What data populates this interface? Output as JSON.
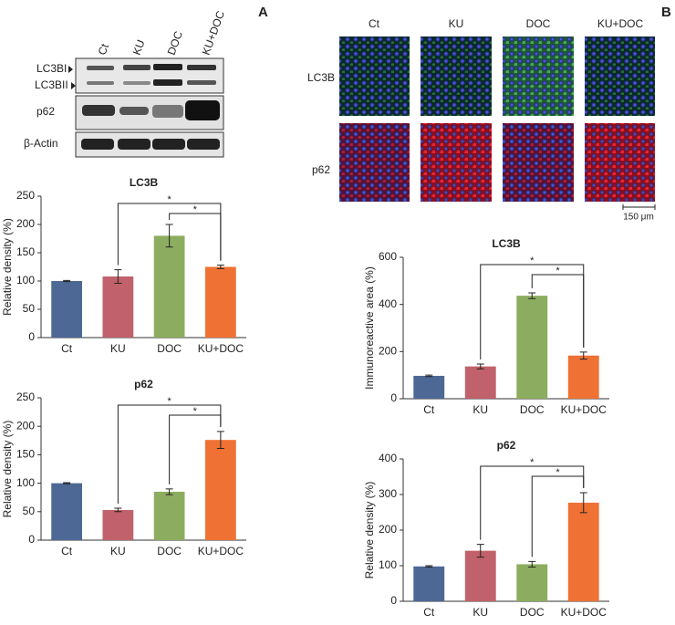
{
  "panel_a": {
    "label": "A",
    "blot": {
      "lanes": [
        "Ct",
        "KU",
        "DOC",
        "KU+DOC"
      ],
      "rows": [
        "LC3BI",
        "LC3BII",
        "p62",
        "β-Actin"
      ]
    }
  },
  "panel_b": {
    "label": "B",
    "microscopy": {
      "columns": [
        "Ct",
        "KU",
        "DOC",
        "KU+DOC"
      ],
      "rows": [
        "LC3B",
        "p62"
      ],
      "scale_bar": "150 μm"
    }
  },
  "chart_data": [
    {
      "type": "bar",
      "title": "LC3B",
      "y_label": "Relative density (%)",
      "categories": [
        "Ct",
        "KU",
        "DOC",
        "KU+DOC"
      ],
      "values": [
        100,
        108,
        180,
        125
      ],
      "errors": [
        1,
        12,
        20,
        3
      ],
      "colors": [
        "#4d6895",
        "#c0616b",
        "#8cad5f",
        "#f07134"
      ],
      "ylim": [
        0,
        250
      ],
      "yticks": [
        0,
        50,
        100,
        150,
        200,
        250
      ],
      "annotations": [
        {
          "from": 1,
          "to": 3,
          "label": "*"
        },
        {
          "from": 2,
          "to": 3,
          "label": "*"
        }
      ]
    },
    {
      "type": "bar",
      "title": "p62",
      "y_label": "Relative density (%)",
      "categories": [
        "Ct",
        "KU",
        "DOC",
        "KU+DOC"
      ],
      "values": [
        100,
        53,
        85,
        176
      ],
      "errors": [
        1,
        3,
        5,
        15
      ],
      "colors": [
        "#4d6895",
        "#c0616b",
        "#8cad5f",
        "#f07134"
      ],
      "ylim": [
        0,
        250
      ],
      "yticks": [
        0,
        50,
        100,
        150,
        200,
        250
      ],
      "annotations": [
        {
          "from": 1,
          "to": 3,
          "label": "*"
        },
        {
          "from": 2,
          "to": 3,
          "label": "*"
        }
      ]
    },
    {
      "type": "bar",
      "title": "LC3B",
      "y_label": "Immunoreactive area (%)",
      "categories": [
        "Ct",
        "KU",
        "DOC",
        "KU+DOC"
      ],
      "values": [
        97,
        137,
        437,
        183
      ],
      "errors": [
        3,
        10,
        12,
        15
      ],
      "colors": [
        "#4d6895",
        "#c0616b",
        "#8cad5f",
        "#f07134"
      ],
      "ylim": [
        0,
        600
      ],
      "yticks": [
        0,
        200,
        400,
        600
      ],
      "annotations": [
        {
          "from": 1,
          "to": 3,
          "label": "*"
        },
        {
          "from": 2,
          "to": 3,
          "label": "*"
        }
      ]
    },
    {
      "type": "bar",
      "title": "p62",
      "y_label": "Relative density (%)",
      "categories": [
        "Ct",
        "KU",
        "DOC",
        "KU+DOC"
      ],
      "values": [
        98,
        142,
        104,
        277
      ],
      "errors": [
        2,
        18,
        8,
        28
      ],
      "colors": [
        "#4d6895",
        "#c0616b",
        "#8cad5f",
        "#f07134"
      ],
      "ylim": [
        0,
        400
      ],
      "yticks": [
        0,
        100,
        200,
        300,
        400
      ],
      "annotations": [
        {
          "from": 1,
          "to": 3,
          "label": "*"
        },
        {
          "from": 2,
          "to": 3,
          "label": "*"
        }
      ]
    }
  ]
}
